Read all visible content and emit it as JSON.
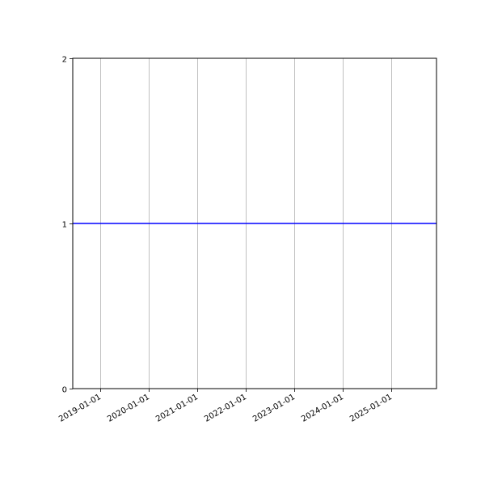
{
  "chart_data": {
    "type": "line",
    "title": "",
    "xlabel": "",
    "ylabel": "",
    "xlim": [
      "2018-06-08",
      "2025-12-08"
    ],
    "ylim": [
      0,
      2
    ],
    "x_ticks": [
      "2019-01-01",
      "2020-01-01",
      "2021-01-01",
      "2022-01-01",
      "2023-01-01",
      "2024-01-01",
      "2025-01-01"
    ],
    "y_ticks": [
      0,
      1,
      2
    ],
    "y_tick_labels": [
      "0",
      "1",
      "2"
    ],
    "grid": "x-axis vertical gridlines",
    "series": [
      {
        "color": "#0000ff",
        "x": [
          "2018-06-08",
          "2025-12-08"
        ],
        "y": [
          1,
          1
        ]
      }
    ]
  }
}
